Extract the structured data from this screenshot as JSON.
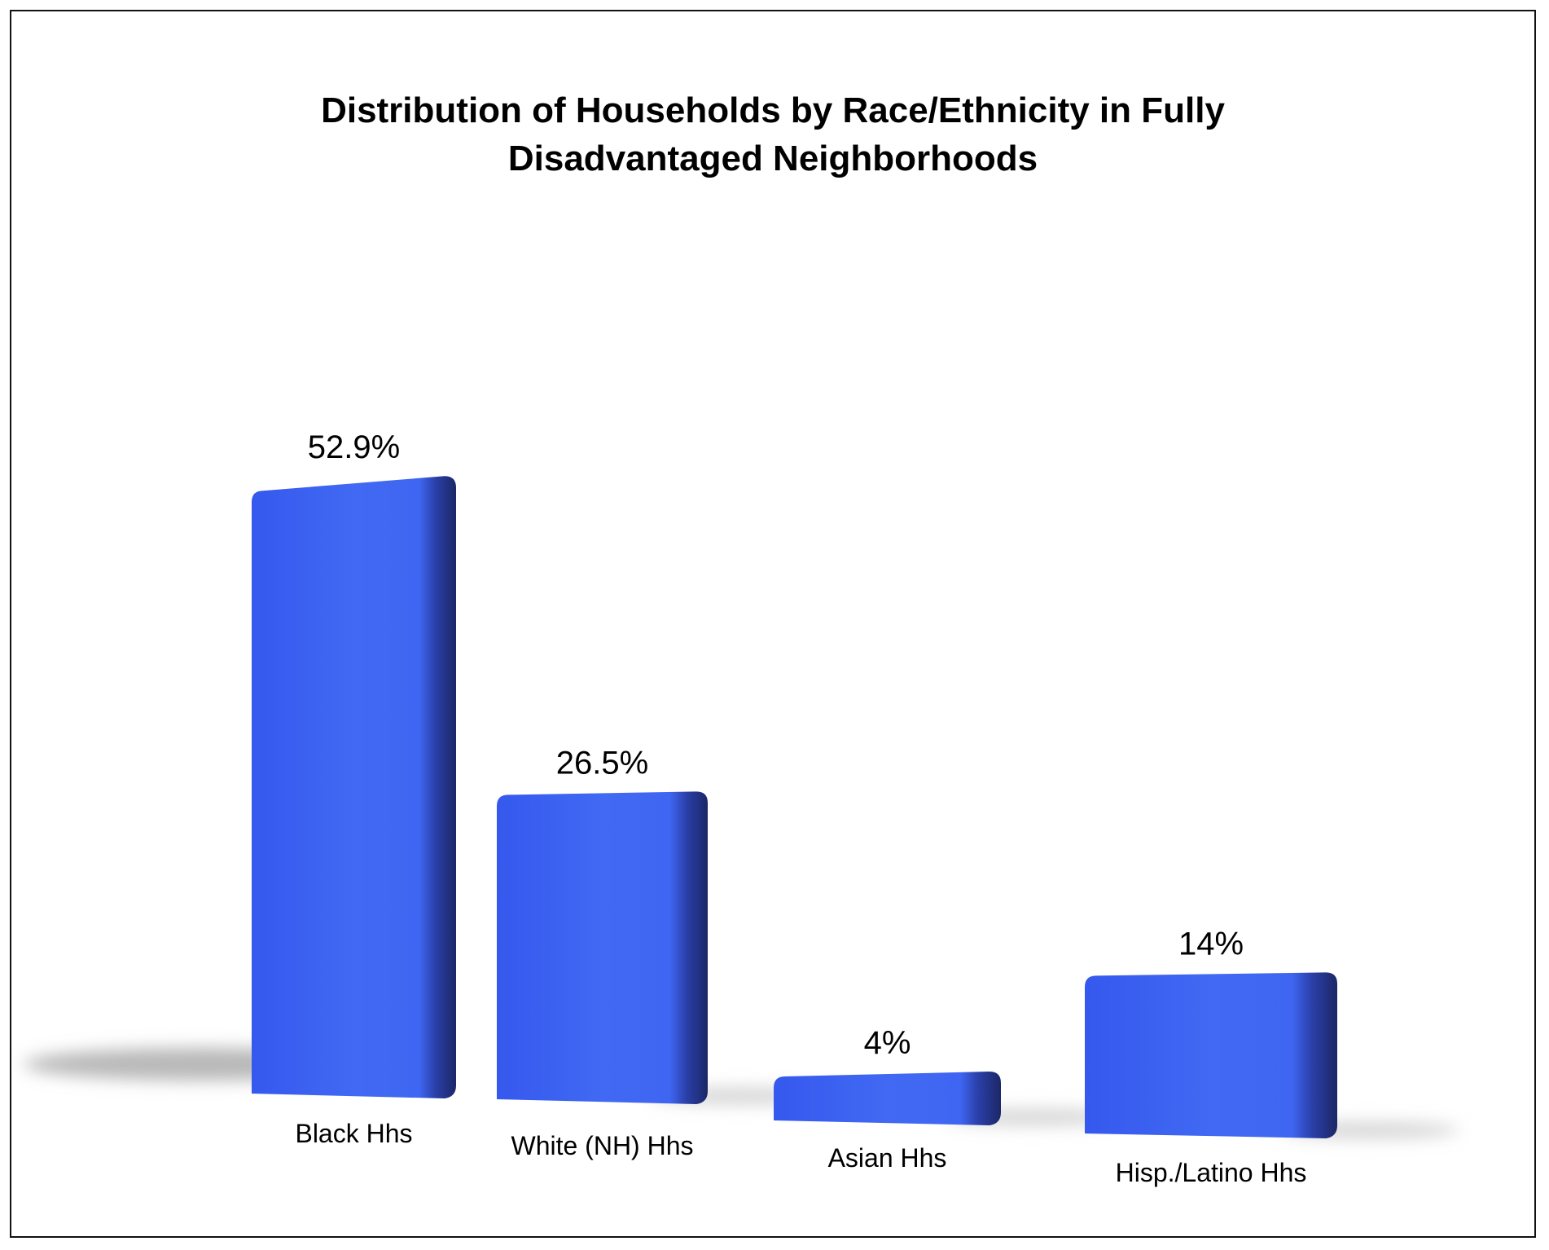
{
  "chart_data": {
    "type": "bar",
    "title_line1": "Distribution of Households by Race/Ethnicity in Fully",
    "title_line2": "Disadvantaged Neighborhoods",
    "categories": [
      "Black Hhs",
      "White (NH) Hhs",
      "Asian Hhs",
      "Hisp./Latino Hhs"
    ],
    "values": [
      52.9,
      26.5,
      4,
      14
    ],
    "value_labels": [
      "52.9%",
      "26.5%",
      "4%",
      "14%"
    ],
    "xlabel": "",
    "ylabel": "",
    "ylim": [
      0,
      55
    ],
    "grid": false,
    "legend": "none",
    "colors": {
      "bar_face": "#3f66f2",
      "bar_side": "#1e2b6e",
      "shadow": "#b8b8b8"
    }
  }
}
